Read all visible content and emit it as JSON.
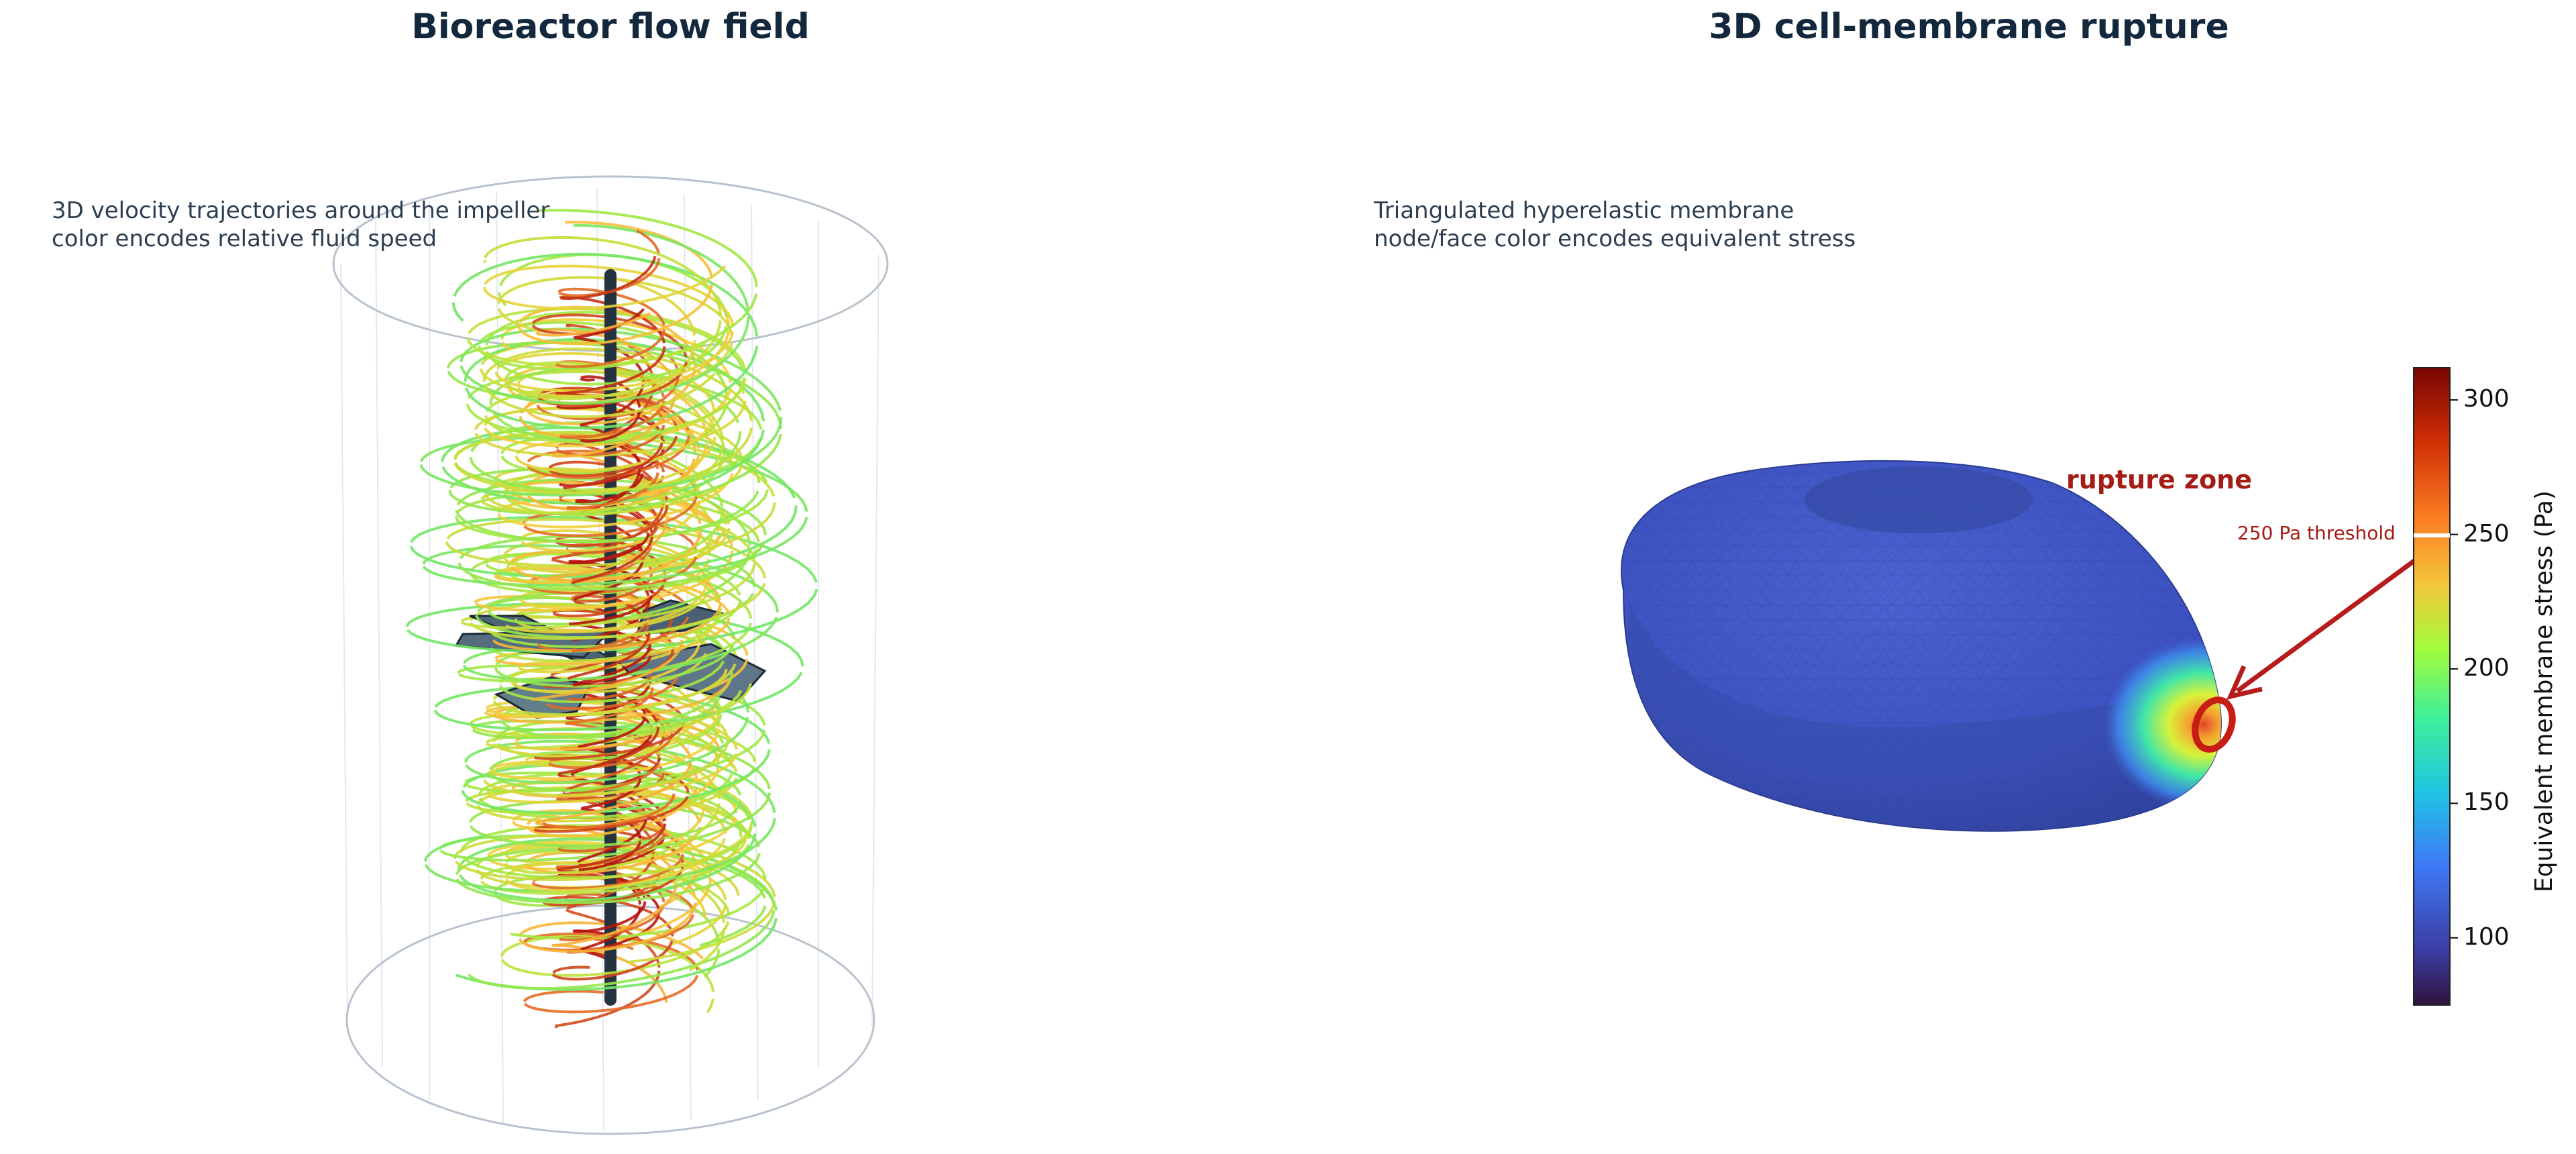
{
  "chart_data": [
    {
      "type": "line",
      "title": "Bioreactor flow field",
      "subtitle_lines": [
        "3D velocity trajectories around the impeller",
        "color encodes relative fluid speed"
      ],
      "description": "3D helical velocity trajectories inside a cylindrical vessel around a central shaft and impeller; color encodes relative fluid speed (green = slow, red = fast)",
      "colors": {
        "slow": "#2ee59a",
        "mid": "#f7a93a",
        "fast": "#b7160f",
        "shaft": "#24333f",
        "blades": "#4d6475",
        "vessel": "#b9c2cf"
      }
    },
    {
      "type": "heatmap",
      "title": "3D cell-membrane rupture",
      "subtitle_lines": [
        "Triangulated hyperelastic membrane",
        "node/face color encodes equivalent stress"
      ],
      "colorbar": {
        "label": "Equivalent membrane stress (Pa)",
        "ticks": [
          100,
          150,
          200,
          250,
          300
        ],
        "range": [
          75,
          312
        ],
        "colormap": "turbo",
        "threshold_value": 250
      },
      "annotations": {
        "rupture_label": "rupture zone",
        "threshold_label": "250 Pa threshold"
      },
      "colors": {
        "membrane": "#3d56c4",
        "annotation": "#a51c14"
      }
    }
  ]
}
